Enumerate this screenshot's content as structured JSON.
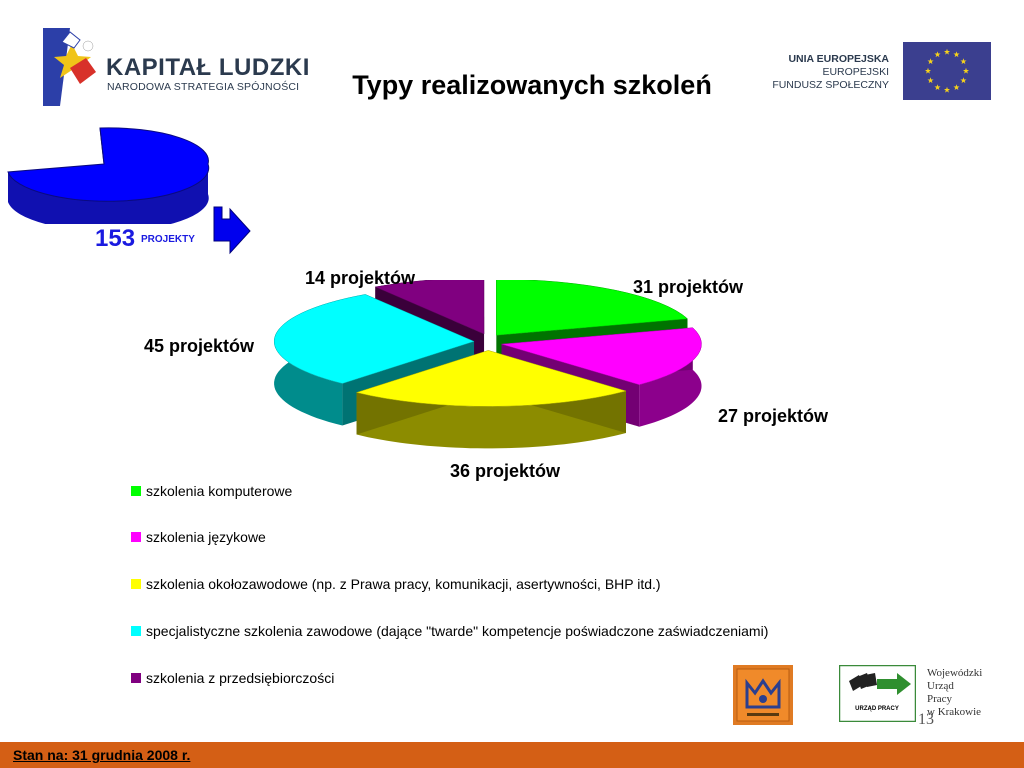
{
  "header": {
    "logo_left_title": "KAPITAŁ LUDZKI",
    "logo_left_subtitle": "NARODOWA STRATEGIA SPÓJNOŚCI",
    "logo_right_line1": "UNIA EUROPEJSKA",
    "logo_right_line2": "EUROPEJSKI",
    "logo_right_line3": "FUNDUSZ SPOŁECZNY"
  },
  "title": "Typy realizowanych szkoleń",
  "summary": {
    "count": "153",
    "label": "PROJEKTY"
  },
  "chart_data": {
    "type": "pie",
    "title": "Typy realizowanych szkoleń",
    "total": 153,
    "total_label": "153 PROJEKTY",
    "series": [
      {
        "name": "szkolenia komputerowe",
        "value": 31,
        "label": "31 projektów",
        "color": "#00ff00"
      },
      {
        "name": "szkolenia językowe",
        "value": 27,
        "label": "27 projektów",
        "color": "#ff00ff"
      },
      {
        "name": "szkolenia okołozawodowe  (np. z Prawa pracy, komunikacji, asertywności, BHP itd.)",
        "value": 36,
        "label": "36 projektów",
        "color": "#ffff00"
      },
      {
        "name": "specjalistyczne szkolenia zawodowe (dające \"twarde\" kompetencje poświadczone zaświadczeniami)",
        "value": 45,
        "label": "45 projektów",
        "color": "#00ffff"
      },
      {
        "name": "szkolenia z przedsiębiorczości",
        "value": 14,
        "label": "14 projektów",
        "color": "#800080"
      }
    ],
    "legend_placement": "bottom",
    "style": "3d exploded pie"
  },
  "footer": {
    "status": "Stan na:  31 grudnia 2008 r.",
    "page_number": "13",
    "wup_lines": [
      "Wojewódzki",
      "Urząd",
      "Pracy",
      "w Krakowie"
    ],
    "wup_badge": "URZĄD PRACY",
    "color": "#d45f15"
  }
}
